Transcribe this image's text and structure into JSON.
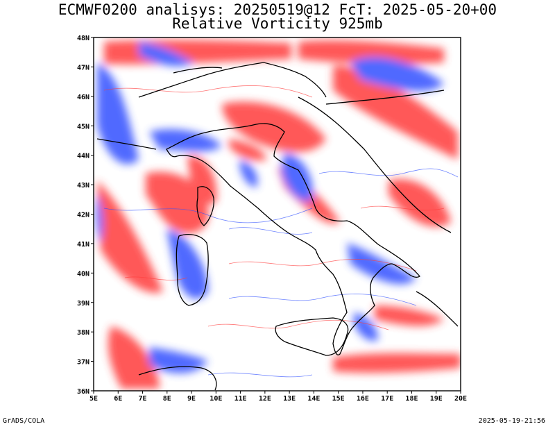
{
  "header": {
    "line1": "ECMWF0200 analisys: 20250519@12 FcT: 2025-05-20+00",
    "line2": "Relative Vorticity 925mb"
  },
  "map": {
    "lat_labels": [
      "48N",
      "47N",
      "46N",
      "45N",
      "44N",
      "43N",
      "42N",
      "41N",
      "40N",
      "39N",
      "38N",
      "37N",
      "36N"
    ],
    "lon_labels": [
      "5E",
      "6E",
      "7E",
      "8E",
      "9E",
      "10E",
      "11E",
      "12E",
      "13E",
      "14E",
      "15E",
      "16E",
      "17E",
      "18E",
      "19E",
      "20E"
    ],
    "lon_range": [
      5,
      20
    ],
    "lat_range": [
      36,
      48
    ],
    "colors": {
      "positive": "#ff3b3b",
      "negative": "#3050ff",
      "coast": "#000000"
    }
  },
  "footer": {
    "credit": "GrADS/COLA",
    "timestamp": "2025-05-19-21:56"
  }
}
